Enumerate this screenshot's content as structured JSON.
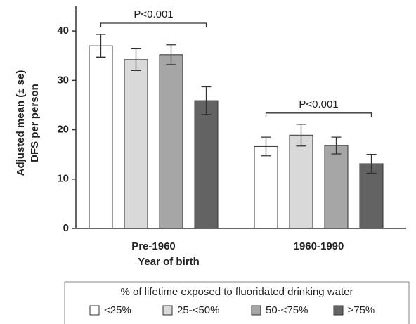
{
  "chart_data": {
    "type": "bar",
    "ylabel": [
      "Adjusted mean (± se)",
      "DFS per person"
    ],
    "xlabel": "Year of birth",
    "categories": [
      "Pre-1960",
      "1960-1990"
    ],
    "series": [
      {
        "name": "<25%",
        "color": "#ffffff",
        "values": [
          37.0,
          16.6
        ],
        "errors": [
          2.3,
          1.9
        ]
      },
      {
        "name": "25-<50%",
        "color": "#d9d9d9",
        "values": [
          34.2,
          18.9
        ],
        "errors": [
          2.2,
          2.2
        ]
      },
      {
        "name": "50-<75%",
        "color": "#a6a6a6",
        "values": [
          35.2,
          16.8
        ],
        "errors": [
          2.0,
          1.7
        ]
      },
      {
        "name": "≥75%",
        "color": "#636363",
        "values": [
          25.9,
          13.1
        ],
        "errors": [
          2.8,
          1.9
        ]
      }
    ],
    "annotations": [
      "P<0.001",
      "P<0.001"
    ],
    "legend_title": "% of lifetime exposed to fluoridated drinking water",
    "ylim": [
      0,
      45
    ],
    "yticks": [
      0,
      10,
      20,
      30,
      40
    ]
  }
}
